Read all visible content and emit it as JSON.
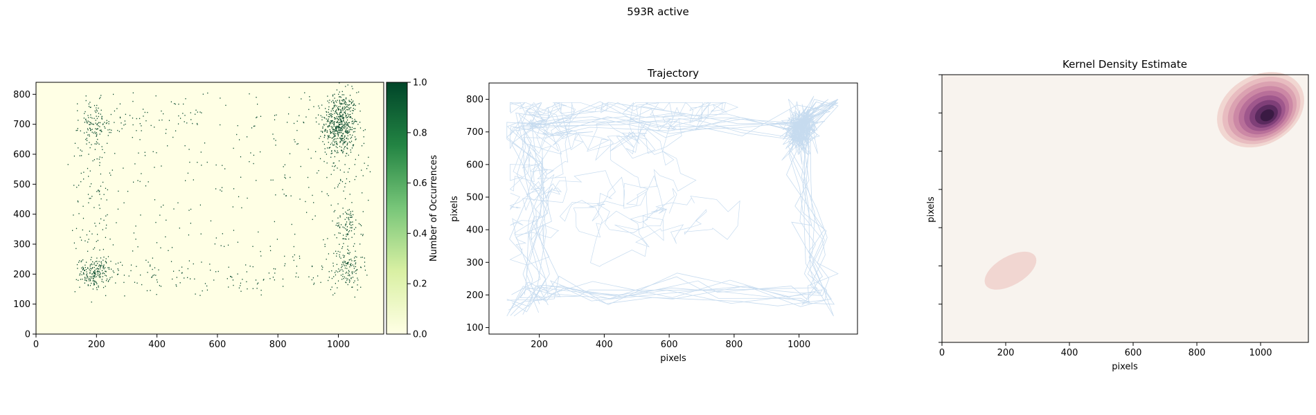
{
  "figure": {
    "suptitle": "593R active"
  },
  "chart_data": [
    {
      "type": "heatmap",
      "title": "",
      "xlabel": "",
      "ylabel": "",
      "xlim": [
        0,
        1150
      ],
      "ylim": [
        0,
        840
      ],
      "xticks": [
        0,
        200,
        400,
        600,
        800,
        1000
      ],
      "yticks": [
        0,
        100,
        200,
        300,
        400,
        500,
        600,
        700,
        800
      ],
      "colormap": {
        "name": "YlGn",
        "low": "#ffffe5",
        "mid": "#78c679",
        "high": "#004529"
      },
      "colorbar": {
        "label": "Number of Occurrences",
        "range": [
          0,
          1
        ],
        "ticks": [
          "0.0",
          "0.2",
          "0.4",
          "0.6",
          "0.8",
          "1.0"
        ]
      },
      "clusters": [
        {
          "x": 1005,
          "y": 700,
          "sx": 28,
          "sy": 55,
          "n": 520
        },
        {
          "x": 195,
          "y": 205,
          "sx": 25,
          "sy": 25,
          "n": 180
        },
        {
          "x": 190,
          "y": 700,
          "sx": 25,
          "sy": 40,
          "n": 90
        },
        {
          "x": 1030,
          "y": 230,
          "sx": 25,
          "sy": 40,
          "n": 110
        },
        {
          "x": 1030,
          "y": 370,
          "sx": 20,
          "sy": 30,
          "n": 60
        }
      ],
      "background_points": 700
    },
    {
      "type": "line",
      "title": "Trajectory",
      "xlabel": "pixels",
      "ylabel": "pixels",
      "xlim": [
        45,
        1180
      ],
      "ylim": [
        80,
        850
      ],
      "xticks": [
        200,
        400,
        600,
        800,
        1000
      ],
      "yticks": [
        100,
        200,
        300,
        400,
        500,
        600,
        700,
        800
      ],
      "line_color": "#c6dbef",
      "path_keypoints": [
        [
          110,
          150
        ],
        [
          175,
          200
        ],
        [
          200,
          210
        ],
        [
          260,
          220
        ],
        [
          400,
          205
        ],
        [
          600,
          210
        ],
        [
          800,
          205
        ],
        [
          1000,
          200
        ],
        [
          1050,
          190
        ],
        [
          1070,
          220
        ],
        [
          1040,
          300
        ],
        [
          1060,
          380
        ],
        [
          1030,
          450
        ],
        [
          1010,
          550
        ],
        [
          1000,
          650
        ],
        [
          1010,
          700
        ],
        [
          1050,
          760
        ],
        [
          1120,
          790
        ],
        [
          1000,
          720
        ],
        [
          800,
          730
        ],
        [
          600,
          720
        ],
        [
          400,
          735
        ],
        [
          220,
          720
        ],
        [
          160,
          750
        ],
        [
          130,
          690
        ],
        [
          180,
          600
        ],
        [
          200,
          450
        ],
        [
          180,
          380
        ],
        [
          210,
          250
        ],
        [
          180,
          200
        ]
      ]
    },
    {
      "type": "heatmap",
      "title": "Kernel Density Estimate",
      "xlabel": "pixels",
      "ylabel": "pixels",
      "xlim": [
        0,
        1150
      ],
      "ylim": [
        0,
        840
      ],
      "xticks": [
        0,
        200,
        400,
        600,
        800,
        1000
      ],
      "background_color": "#f8f3ee",
      "contours": [
        {
          "cx": 1000,
          "cy": 730,
          "rx": 145,
          "ry": 108,
          "rotate": -30,
          "levels": [
            "#f1d6d1",
            "#e8bcc0",
            "#dba2b1",
            "#cc88a5",
            "#b86f99",
            "#9f578c",
            "#7f3f78",
            "#5a2a5e",
            "#3a1a43"
          ]
        },
        {
          "cx": 215,
          "cy": 225,
          "rx": 90,
          "ry": 45,
          "rotate": -30,
          "levels": [
            "#f1d6d1"
          ]
        }
      ]
    }
  ]
}
